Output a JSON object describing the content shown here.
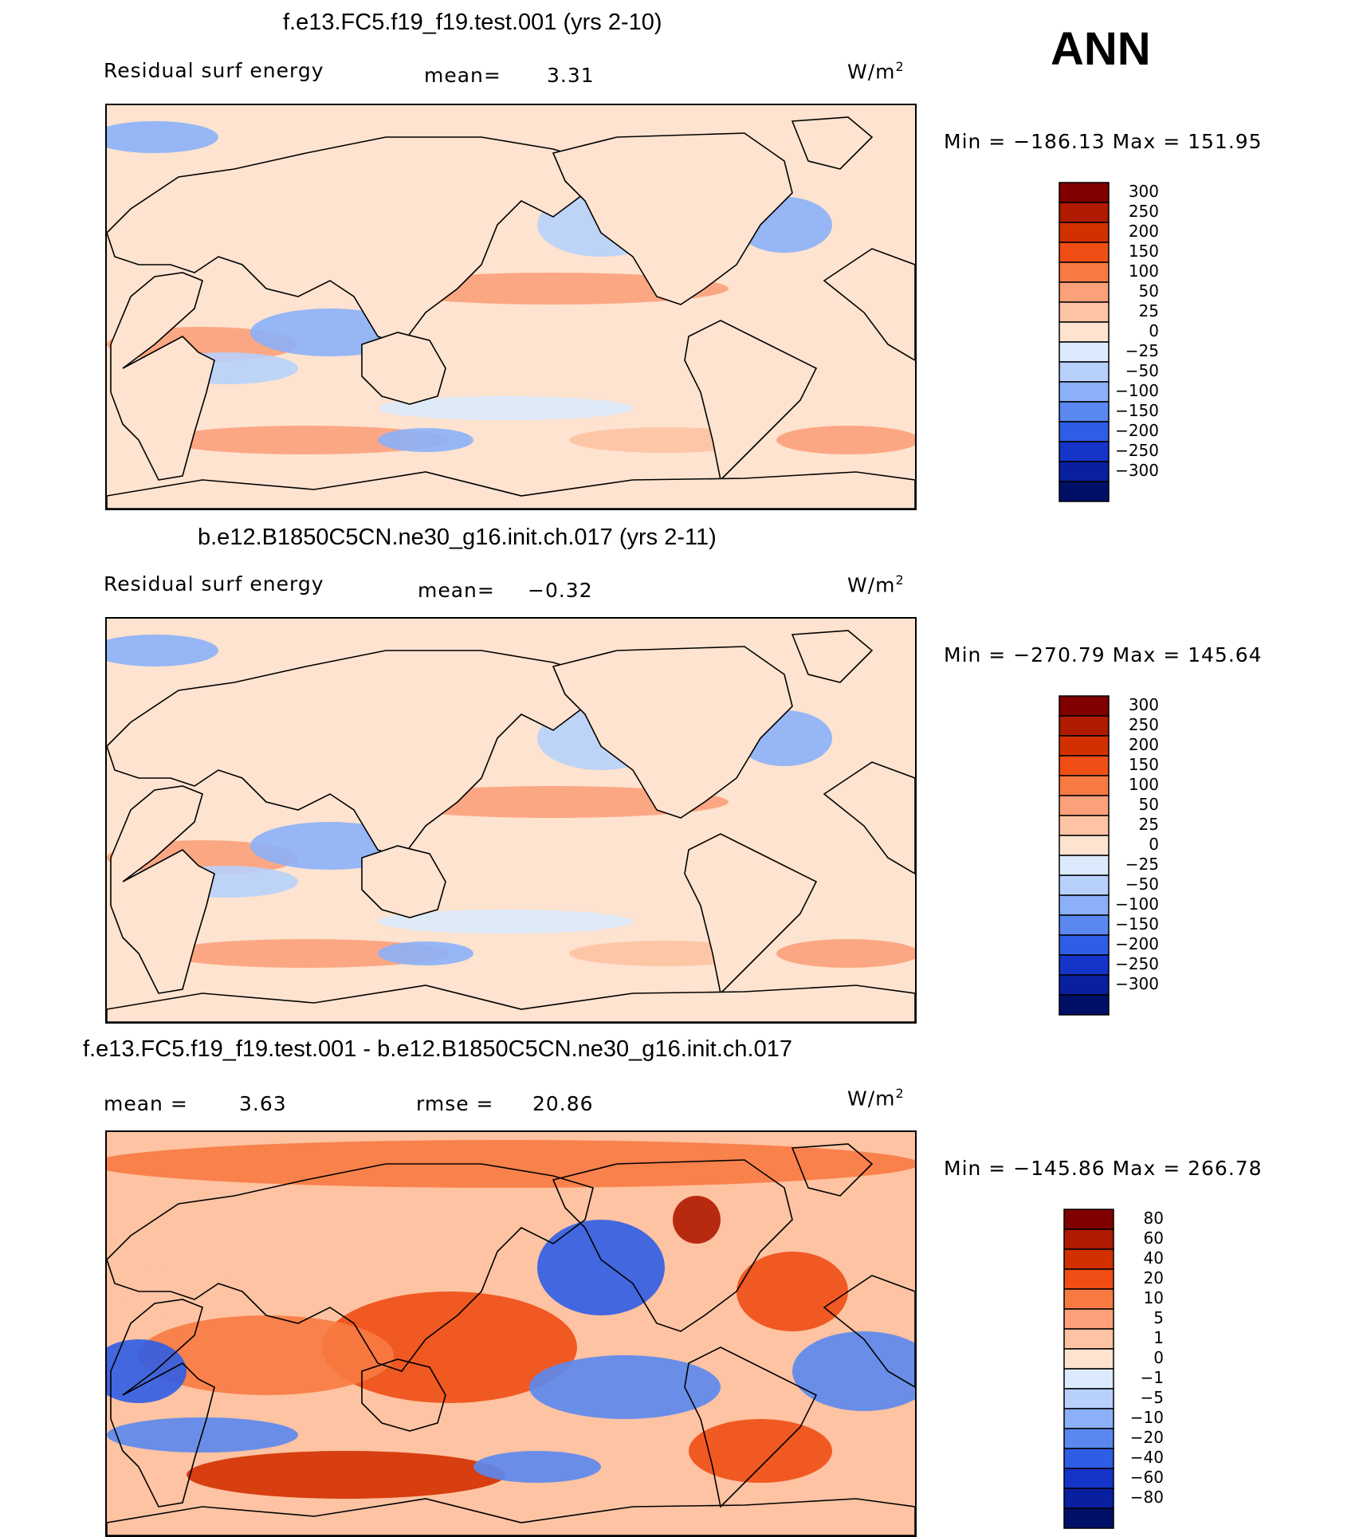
{
  "season": "ANN",
  "units": "W/m²",
  "panels": [
    {
      "title": "f.e13.FC5.f19_f19.test.001 (yrs 2-10)",
      "left_label": "Residual surf energy",
      "stat_label": "mean=",
      "stat_value": "3.31",
      "stat2_label": "",
      "stat2_value": "",
      "minmax": "Min  =  −186.13  Max  =  151.95"
    },
    {
      "title": "b.e12.B1850C5CN.ne30_g16.init.ch.017 (yrs 2-11)",
      "left_label": "Residual surf energy",
      "stat_label": "mean=",
      "stat_value": "−0.32",
      "stat2_label": "",
      "stat2_value": "",
      "minmax": "Min  =  −270.79  Max  =  145.64"
    },
    {
      "title": "f.e13.FC5.f19_f19.test.001 - b.e12.B1850C5CN.ne30_g16.init.ch.017",
      "left_label": "mean  =",
      "stat_label": "",
      "stat_value": "3.63",
      "stat2_label": "rmse  =",
      "stat2_value": "20.86",
      "minmax": "Min  =  −145.86  Max  =  266.78"
    }
  ],
  "chart_data": [
    {
      "type": "heatmap",
      "title": "f.e13.FC5.f19_f19.test.001 (yrs 2-10)",
      "field": "Residual surf energy",
      "units": "W/m2",
      "mean": 3.31,
      "min": -186.13,
      "max": 151.95,
      "levels": [
        300,
        250,
        200,
        150,
        100,
        50,
        25,
        0,
        -25,
        -50,
        -100,
        -150,
        -200,
        -250,
        -300
      ]
    },
    {
      "type": "heatmap",
      "title": "b.e12.B1850C5CN.ne30_g16.init.ch.017 (yrs 2-11)",
      "field": "Residual surf energy",
      "units": "W/m2",
      "mean": -0.32,
      "min": -270.79,
      "max": 145.64,
      "levels": [
        300,
        250,
        200,
        150,
        100,
        50,
        25,
        0,
        -25,
        -50,
        -100,
        -150,
        -200,
        -250,
        -300
      ]
    },
    {
      "type": "heatmap",
      "title": "f.e13.FC5.f19_f19.test.001 - b.e12.B1850C5CN.ne30_g16.init.ch.017",
      "units": "W/m2",
      "mean": 3.63,
      "rmse": 20.86,
      "min": -145.86,
      "max": 266.78,
      "levels": [
        80,
        60,
        40,
        20,
        10,
        5,
        1,
        0,
        -1,
        -5,
        -10,
        -20,
        -40,
        -60,
        -80
      ]
    }
  ],
  "colorbars": [
    {
      "labels": [
        "300",
        "250",
        "200",
        "150",
        "100",
        "50",
        "25",
        "0",
        "−25",
        "−50",
        "−100",
        "−150",
        "−200",
        "−250",
        "−300"
      ],
      "colors": [
        "#800000",
        "#b01a00",
        "#d33000",
        "#f04e14",
        "#f87a43",
        "#fca07a",
        "#fdc3a2",
        "#fde3d0",
        "#dbeafd",
        "#b7d1fb",
        "#8bb0f8",
        "#5a88f0",
        "#2f5de6",
        "#1535c9",
        "#0a1fa0",
        "#001066"
      ]
    },
    {
      "labels": [
        "300",
        "250",
        "200",
        "150",
        "100",
        "50",
        "25",
        "0",
        "−25",
        "−50",
        "−100",
        "−150",
        "−200",
        "−250",
        "−300"
      ],
      "colors": [
        "#800000",
        "#b01a00",
        "#d33000",
        "#f04e14",
        "#f87a43",
        "#fca07a",
        "#fdc3a2",
        "#fde3d0",
        "#dbeafd",
        "#b7d1fb",
        "#8bb0f8",
        "#5a88f0",
        "#2f5de6",
        "#1535c9",
        "#0a1fa0",
        "#001066"
      ]
    },
    {
      "labels": [
        "80",
        "60",
        "40",
        "20",
        "10",
        "5",
        "1",
        "0",
        "−1",
        "−5",
        "−10",
        "−20",
        "−40",
        "−60",
        "−80"
      ],
      "colors": [
        "#800000",
        "#b01a00",
        "#d33000",
        "#f04e14",
        "#f87a43",
        "#fca07a",
        "#fdc3a2",
        "#fde3d0",
        "#dbeafd",
        "#b7d1fb",
        "#8bb0f8",
        "#5a88f0",
        "#2f5de6",
        "#1535c9",
        "#0a1fa0",
        "#001066"
      ]
    }
  ]
}
